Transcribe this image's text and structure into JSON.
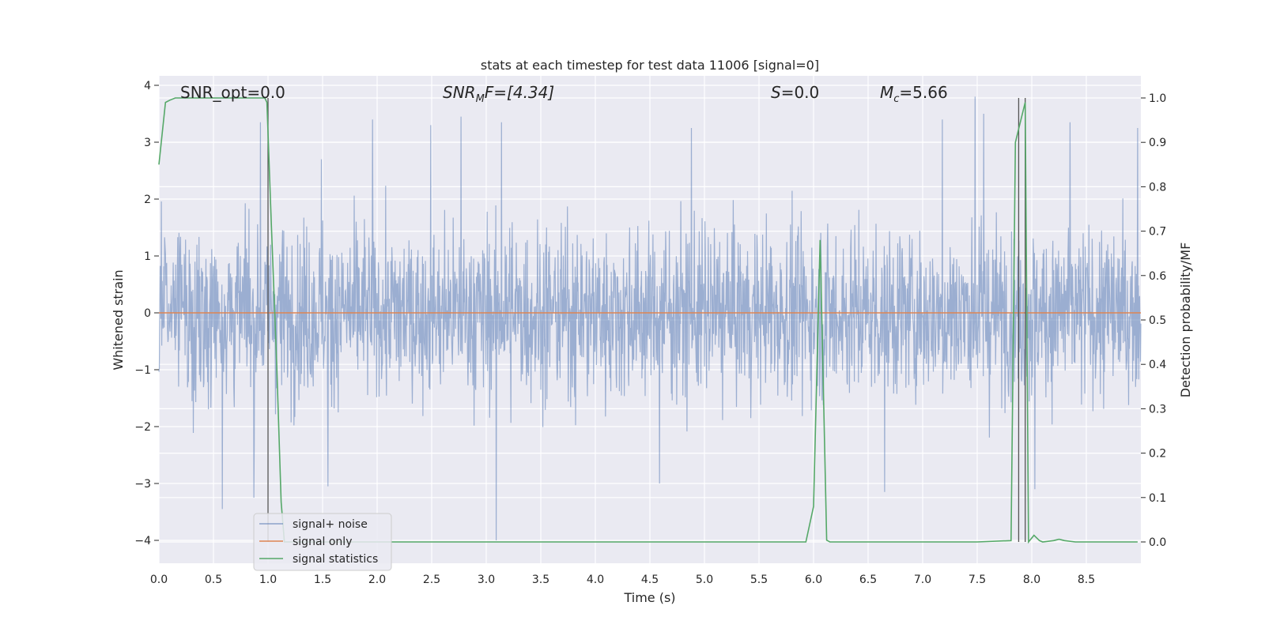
{
  "chart_data": {
    "type": "line",
    "title": "stats at each timestep for test data 11006 [signal=0]",
    "xlabel": "Time (s)",
    "ylabel": "Whitened strain",
    "ylabel_right": "Detection probability/MF",
    "xlim": [
      0.0,
      9.0
    ],
    "ylim": [
      -4.4,
      4.15
    ],
    "ylim_right": [
      -0.05,
      1.03
    ],
    "xticks": [
      "0.0",
      "0.5",
      "1.0",
      "1.5",
      "2.0",
      "2.5",
      "3.0",
      "3.5",
      "4.0",
      "4.5",
      "5.0",
      "5.5",
      "6.0",
      "6.5",
      "7.0",
      "7.5",
      "8.0",
      "8.5"
    ],
    "yticks": [
      "−4",
      "−3",
      "−2",
      "−1",
      "0",
      "1",
      "2",
      "3",
      "4"
    ],
    "yticks_right": [
      "0.0",
      "0.1",
      "0.2",
      "0.3",
      "0.4",
      "0.5",
      "0.6",
      "0.7",
      "0.8",
      "0.9",
      "1.0"
    ],
    "grid": true,
    "legend_position": "lower-left",
    "annotations": {
      "snr_opt": "SNR_opt=0.0",
      "snr_mf_base": "SNR",
      "snr_mf_sub": "M",
      "snr_mf_tail": "F=[4.34]",
      "s_var": "S",
      "s_val": "=0.0",
      "mc_var": "M",
      "mc_sub": "c",
      "mc_val": "=5.66"
    },
    "colors": {
      "noise": "#4c72b0",
      "signal": "#dd8452",
      "stats": "#55a868",
      "vlines": "#555555",
      "axes_bg": "#eaeaf2"
    },
    "series": [
      {
        "name": "signal+ noise",
        "axis": "left",
        "envelope": "random noise, approx. ±1.5 typical, peaks near ±3.8",
        "spikes": [
          {
            "x": 0.58,
            "y": -3.45
          },
          {
            "x": 0.87,
            "y": -3.25
          },
          {
            "x": 0.93,
            "y": 3.35
          },
          {
            "x": 1.49,
            "y": 2.7
          },
          {
            "x": 1.55,
            "y": -3.05
          },
          {
            "x": 1.96,
            "y": 3.4
          },
          {
            "x": 2.49,
            "y": 3.3
          },
          {
            "x": 2.77,
            "y": 3.45
          },
          {
            "x": 3.09,
            "y": -4.0
          },
          {
            "x": 3.14,
            "y": 3.35
          },
          {
            "x": 4.59,
            "y": -3.0
          },
          {
            "x": 4.88,
            "y": 3.25
          },
          {
            "x": 6.65,
            "y": -3.15
          },
          {
            "x": 7.18,
            "y": 3.4
          },
          {
            "x": 7.48,
            "y": 3.8
          },
          {
            "x": 7.56,
            "y": 3.5
          },
          {
            "x": 8.03,
            "y": -3.1
          },
          {
            "x": 8.35,
            "y": 3.35
          },
          {
            "x": 8.97,
            "y": 3.25
          }
        ]
      },
      {
        "name": "signal only",
        "axis": "left",
        "x": [
          0.0,
          9.0
        ],
        "y": [
          0.0,
          0.0
        ]
      },
      {
        "name": "signal statistics",
        "axis": "right",
        "x": [
          0.0,
          0.06,
          0.1,
          0.15,
          0.25,
          0.5,
          0.75,
          0.97,
          0.99,
          1.03,
          1.08,
          1.12,
          1.15,
          1.2,
          1.5,
          2.0,
          3.0,
          4.0,
          5.0,
          5.5,
          5.93,
          6.0,
          6.06,
          6.12,
          6.15,
          6.5,
          7.0,
          7.5,
          7.81,
          7.85,
          7.88,
          7.94,
          7.97,
          8.02,
          8.07,
          8.1,
          8.2,
          8.25,
          8.3,
          8.4,
          8.6,
          8.97
        ],
        "y": [
          0.85,
          0.99,
          0.995,
          1.0,
          1.0,
          1.0,
          1.0,
          1.0,
          0.99,
          0.72,
          0.4,
          0.09,
          0.0,
          0.0,
          0.0,
          0.0,
          0.0,
          0.0,
          0.0,
          0.0,
          0.0,
          0.08,
          0.68,
          0.004,
          0.0,
          0.0,
          0.0,
          0.0,
          0.003,
          0.9,
          0.93,
          0.99,
          0.0,
          0.015,
          0.003,
          0.0,
          0.003,
          0.006,
          0.003,
          0.0,
          0.0,
          0.0
        ]
      }
    ],
    "vertical_lines": [
      1.0,
      7.88,
      7.94
    ]
  }
}
